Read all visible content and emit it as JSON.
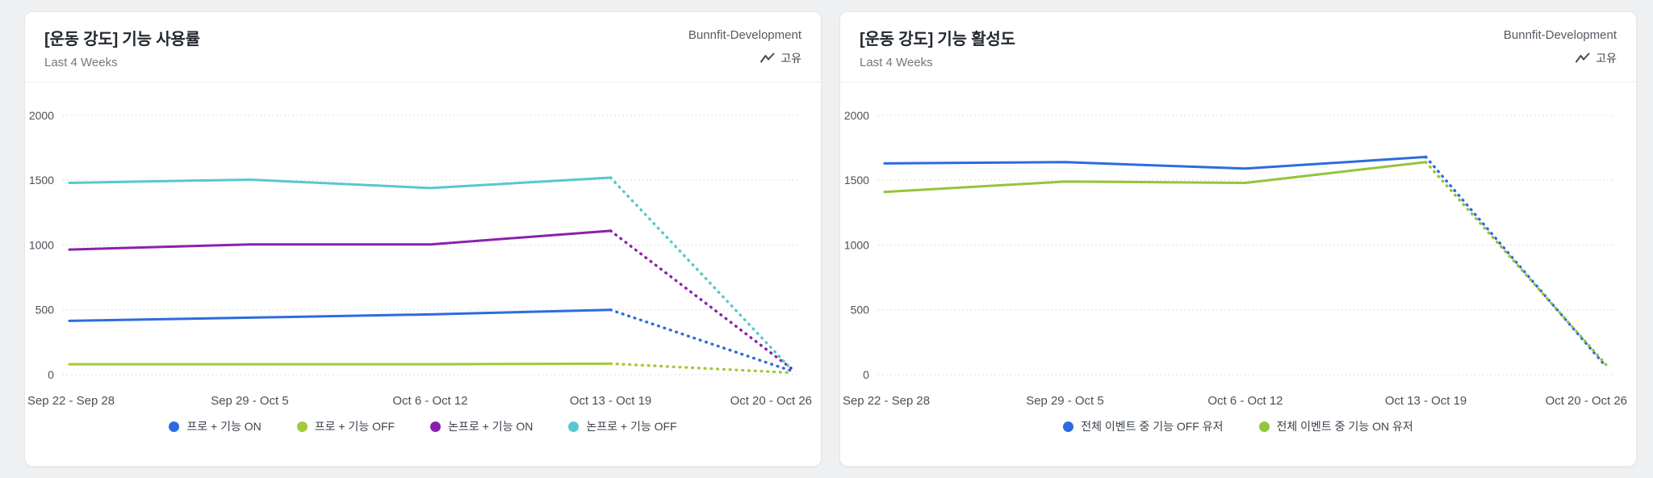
{
  "page": {
    "background": "#eef0f2"
  },
  "cards": [
    {
      "title": "[운동 강도] 기능 사용률",
      "date_range": "Last 4 Weeks",
      "project": "Bunnfit-Development",
      "measure_label": "고유"
    },
    {
      "title": "[운동 강도] 기능 활성도",
      "date_range": "Last 4 Weeks",
      "project": "Bunnfit-Development",
      "measure_label": "고유"
    }
  ],
  "chart_data": [
    {
      "type": "line",
      "title": "[운동 강도] 기능 사용률",
      "categories": [
        "Sep 22 - Sep 28",
        "Sep 29 - Oct 5",
        "Oct 6 - Oct 12",
        "Oct 13 - Oct 19",
        "Oct 20 - Oct 26"
      ],
      "series": [
        {
          "name": "프로 + 기능 ON",
          "color": "#2d6be0",
          "values": [
            415,
            440,
            465,
            500,
            30
          ]
        },
        {
          "name": "프로 + 기능 OFF",
          "color": "#a2c93a",
          "values": [
            80,
            80,
            80,
            85,
            15
          ]
        },
        {
          "name": "논프로 + 기능 ON",
          "color": "#8a21ad",
          "values": [
            965,
            1005,
            1005,
            1110,
            50
          ]
        },
        {
          "name": "논프로 + 기능 OFF",
          "color": "#57c8cd",
          "values": [
            1480,
            1505,
            1440,
            1520,
            45
          ]
        }
      ],
      "xlabel": "",
      "ylabel": "",
      "ylim": [
        0,
        2000
      ],
      "yticks": [
        0,
        500,
        1000,
        1500,
        2000
      ],
      "grid": "horizontal-dotted",
      "legend_position": "bottom",
      "last_segment_style": "dotted (incomplete week)"
    },
    {
      "type": "line",
      "title": "[운동 강도] 기능 활성도",
      "categories": [
        "Sep 22 - Sep 28",
        "Sep 29 - Oct 5",
        "Oct 6 - Oct 12",
        "Oct 13 - Oct 19",
        "Oct 20 - Oct 26"
      ],
      "series": [
        {
          "name": "전체 이벤트 중 기능 OFF 유저",
          "color": "#2d6be0",
          "values": [
            1630,
            1640,
            1590,
            1680,
            60
          ]
        },
        {
          "name": "전체 이벤트 중 기능 ON 유저",
          "color": "#93c53b",
          "values": [
            1410,
            1490,
            1480,
            1640,
            75
          ]
        }
      ],
      "xlabel": "",
      "ylabel": "",
      "ylim": [
        0,
        2000
      ],
      "yticks": [
        0,
        500,
        1000,
        1500,
        2000
      ],
      "grid": "horizontal-dotted",
      "legend_position": "bottom",
      "last_segment_style": "dotted (incomplete week)"
    }
  ]
}
